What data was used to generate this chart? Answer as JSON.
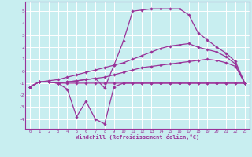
{
  "xlabel": "Windchill (Refroidissement éolien,°C)",
  "background_color": "#c8eef0",
  "grid_color": "#b8dde0",
  "line_color": "#993399",
  "xlim": [
    -0.5,
    23.5
  ],
  "ylim": [
    -4.8,
    5.8
  ],
  "yticks": [
    -4,
    -3,
    -2,
    -1,
    0,
    1,
    2,
    3,
    4,
    5
  ],
  "xticks": [
    0,
    1,
    2,
    3,
    4,
    5,
    6,
    7,
    8,
    9,
    10,
    11,
    12,
    13,
    14,
    15,
    16,
    17,
    18,
    19,
    20,
    21,
    22,
    23
  ],
  "series": [
    {
      "x": [
        0,
        1,
        2,
        3,
        4,
        5,
        6,
        7,
        8,
        9,
        10,
        11,
        12,
        13,
        14,
        15,
        16,
        17,
        18,
        19,
        20,
        21,
        22,
        23
      ],
      "y": [
        -1.3,
        -0.9,
        -0.9,
        -1.0,
        -1.0,
        -1.0,
        -1.0,
        -1.0,
        -1.0,
        -1.0,
        -1.0,
        -1.0,
        -1.0,
        -1.0,
        -1.0,
        -1.0,
        -1.0,
        -1.0,
        -1.0,
        -1.0,
        -1.0,
        -1.0,
        -1.0,
        -1.0
      ]
    },
    {
      "x": [
        0,
        1,
        2,
        3,
        4,
        5,
        6,
        7,
        8,
        9,
        10,
        11,
        12,
        13,
        14,
        15,
        16,
        17,
        18,
        19,
        20,
        21,
        22,
        23
      ],
      "y": [
        -1.3,
        -0.9,
        -0.9,
        -1.0,
        -0.9,
        -0.8,
        -0.7,
        -0.6,
        -0.5,
        -0.3,
        -0.1,
        0.1,
        0.3,
        0.4,
        0.5,
        0.6,
        0.7,
        0.8,
        0.9,
        1.0,
        0.9,
        0.7,
        0.4,
        -1.0
      ]
    },
    {
      "x": [
        0,
        1,
        2,
        3,
        4,
        5,
        6,
        7,
        8,
        9,
        10,
        11,
        12,
        13,
        14,
        15,
        16,
        17,
        18,
        19,
        20,
        21,
        22,
        23
      ],
      "y": [
        -1.3,
        -0.9,
        -0.8,
        -0.7,
        -0.5,
        -0.3,
        -0.1,
        0.1,
        0.3,
        0.5,
        0.7,
        1.0,
        1.3,
        1.6,
        1.9,
        2.1,
        2.2,
        2.3,
        2.0,
        1.8,
        1.6,
        1.2,
        0.6,
        -1.0
      ]
    },
    {
      "x": [
        0,
        1,
        2,
        3,
        4,
        5,
        6,
        7,
        8,
        9,
        10,
        11,
        12,
        13,
        14,
        15,
        16,
        17,
        18,
        19,
        20,
        21,
        22,
        23
      ],
      "y": [
        -1.3,
        -0.9,
        -0.9,
        -1.0,
        -0.9,
        -0.8,
        -0.7,
        -0.6,
        -1.4,
        0.5,
        2.5,
        5.0,
        5.1,
        5.2,
        5.2,
        5.2,
        5.2,
        4.7,
        3.2,
        2.6,
        2.0,
        1.5,
        0.8,
        -1.0
      ]
    },
    {
      "x": [
        0,
        1,
        2,
        3,
        4,
        5,
        6,
        7,
        8,
        9,
        10,
        11,
        12,
        13,
        14,
        15,
        16,
        17,
        18,
        19,
        20,
        21,
        22,
        23
      ],
      "y": [
        -1.3,
        -0.9,
        -0.9,
        -1.0,
        -1.5,
        -3.8,
        -2.5,
        -4.0,
        -4.4,
        -1.3,
        -1.0,
        -1.0,
        -1.0,
        -1.0,
        -1.0,
        -1.0,
        -1.0,
        -1.0,
        -1.0,
        -1.0,
        -1.0,
        -1.0,
        -1.0,
        -1.0
      ]
    }
  ]
}
